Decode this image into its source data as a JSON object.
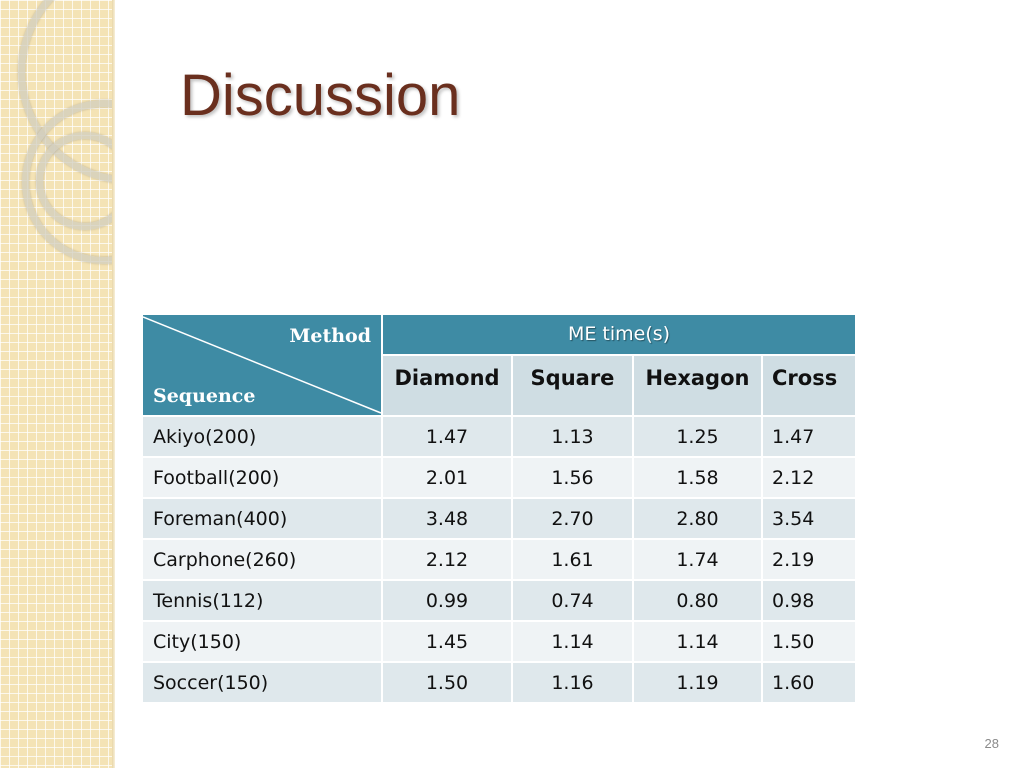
{
  "slide": {
    "title": "Discussion",
    "page_number": "28"
  },
  "table": {
    "corner": {
      "method_label": "Method",
      "sequence_label": "Sequence"
    },
    "group_header": "ME time(s)",
    "columns": [
      "Diamond",
      "Square",
      "Hexagon",
      "Cross"
    ],
    "rows": [
      {
        "sequence": "Akiyo(200)",
        "values": [
          "1.47",
          "1.13",
          "1.25",
          "1.47"
        ]
      },
      {
        "sequence": "Football(200)",
        "values": [
          "2.01",
          "1.56",
          "1.58",
          "2.12"
        ]
      },
      {
        "sequence": "Foreman(400)",
        "values": [
          "3.48",
          "2.70",
          "2.80",
          "3.54"
        ]
      },
      {
        "sequence": "Carphone(260)",
        "values": [
          "2.12",
          "1.61",
          "1.74",
          "2.19"
        ]
      },
      {
        "sequence": "Tennis(112)",
        "values": [
          "0.99",
          "0.74",
          "0.80",
          "0.98"
        ]
      },
      {
        "sequence": "City(150)",
        "values": [
          "1.45",
          "1.14",
          "1.14",
          "1.50"
        ]
      },
      {
        "sequence": "Soccer(150)",
        "values": [
          "1.50",
          "1.16",
          "1.19",
          "1.60"
        ]
      }
    ]
  },
  "colors": {
    "header_teal": "#3e8ba4",
    "subheader": "#cfdde3",
    "row_dark": "#dfe8ec",
    "row_light": "#eff3f5",
    "title_brown": "#6a2f1e",
    "strip": "#f4e3b5"
  }
}
